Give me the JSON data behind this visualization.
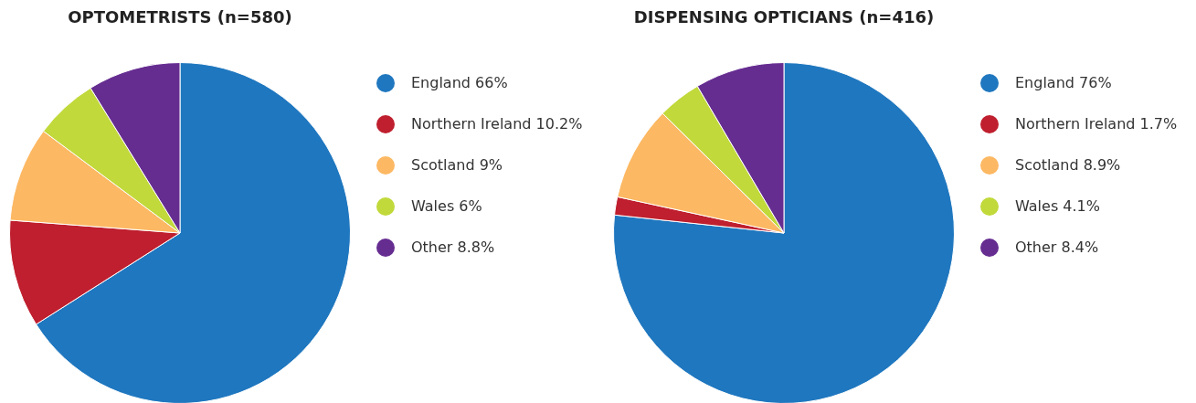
{
  "chart_data": [
    {
      "type": "pie",
      "title": "OPTOMETRISTS (n=580)",
      "categories": [
        "England",
        "Northern Ireland",
        "Scotland",
        "Wales",
        "Other"
      ],
      "values": [
        66,
        10.2,
        9,
        6,
        8.8
      ],
      "value_labels": [
        "66%",
        "10.2%",
        "9%",
        "6%",
        "8.8%"
      ],
      "colors": [
        "#1f77bf",
        "#bf1f2e",
        "#fdb863",
        "#c1d93a",
        "#662d91"
      ],
      "legend": "right"
    },
    {
      "type": "pie",
      "title": "DISPENSING OPTICIANS (n=416)",
      "categories": [
        "England",
        "Northern Ireland",
        "Scotland",
        "Wales",
        "Other"
      ],
      "values": [
        76,
        1.7,
        8.9,
        4.1,
        8.4
      ],
      "value_labels": [
        "76%",
        "1.7%",
        "8.9%",
        "4.1%",
        "8.4%"
      ],
      "colors": [
        "#1f77bf",
        "#bf1f2e",
        "#fdb863",
        "#c1d93a",
        "#662d91"
      ],
      "legend": "right"
    }
  ]
}
